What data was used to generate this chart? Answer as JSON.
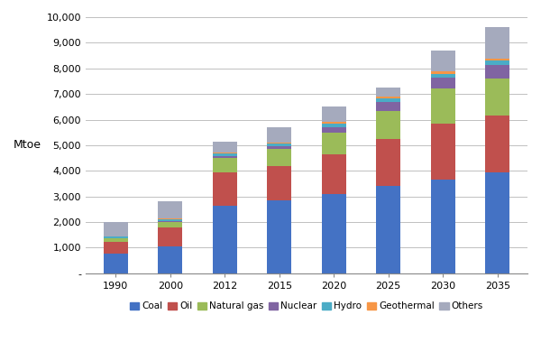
{
  "years": [
    "1990",
    "2000",
    "2012",
    "2015",
    "2020",
    "2025",
    "2030",
    "2035"
  ],
  "coal": [
    750,
    1050,
    2650,
    2850,
    3100,
    3400,
    3650,
    3950
  ],
  "oil": [
    480,
    750,
    1300,
    1350,
    1550,
    1850,
    2200,
    2200
  ],
  "naturalgas": [
    120,
    200,
    550,
    650,
    850,
    1100,
    1350,
    1450
  ],
  "nuclear": [
    25,
    45,
    75,
    100,
    200,
    330,
    430,
    520
  ],
  "hydro": [
    45,
    55,
    90,
    110,
    130,
    140,
    160,
    175
  ],
  "geothermal": [
    15,
    25,
    45,
    55,
    65,
    75,
    90,
    100
  ],
  "others": [
    565,
    675,
    440,
    585,
    605,
    355,
    820,
    1205
  ],
  "colors": {
    "coal": "#4472C4",
    "oil": "#C0504D",
    "naturalgas": "#9BBB59",
    "nuclear": "#8064A2",
    "hydro": "#4BACC6",
    "geothermal": "#F79646",
    "others": "#A5AABD"
  },
  "ylabel": "Mtoe",
  "ylim": [
    0,
    10000
  ],
  "yticks": [
    0,
    1000,
    2000,
    3000,
    4000,
    5000,
    6000,
    7000,
    8000,
    9000,
    10000
  ],
  "ytick_labels": [
    "-",
    "1,000",
    "2,000",
    "3,000",
    "4,000",
    "5,000",
    "6,000",
    "7,000",
    "8,000",
    "9,000",
    "10,000"
  ],
  "background_color": "#FFFFFF",
  "grid_color": "#C0C0C0"
}
